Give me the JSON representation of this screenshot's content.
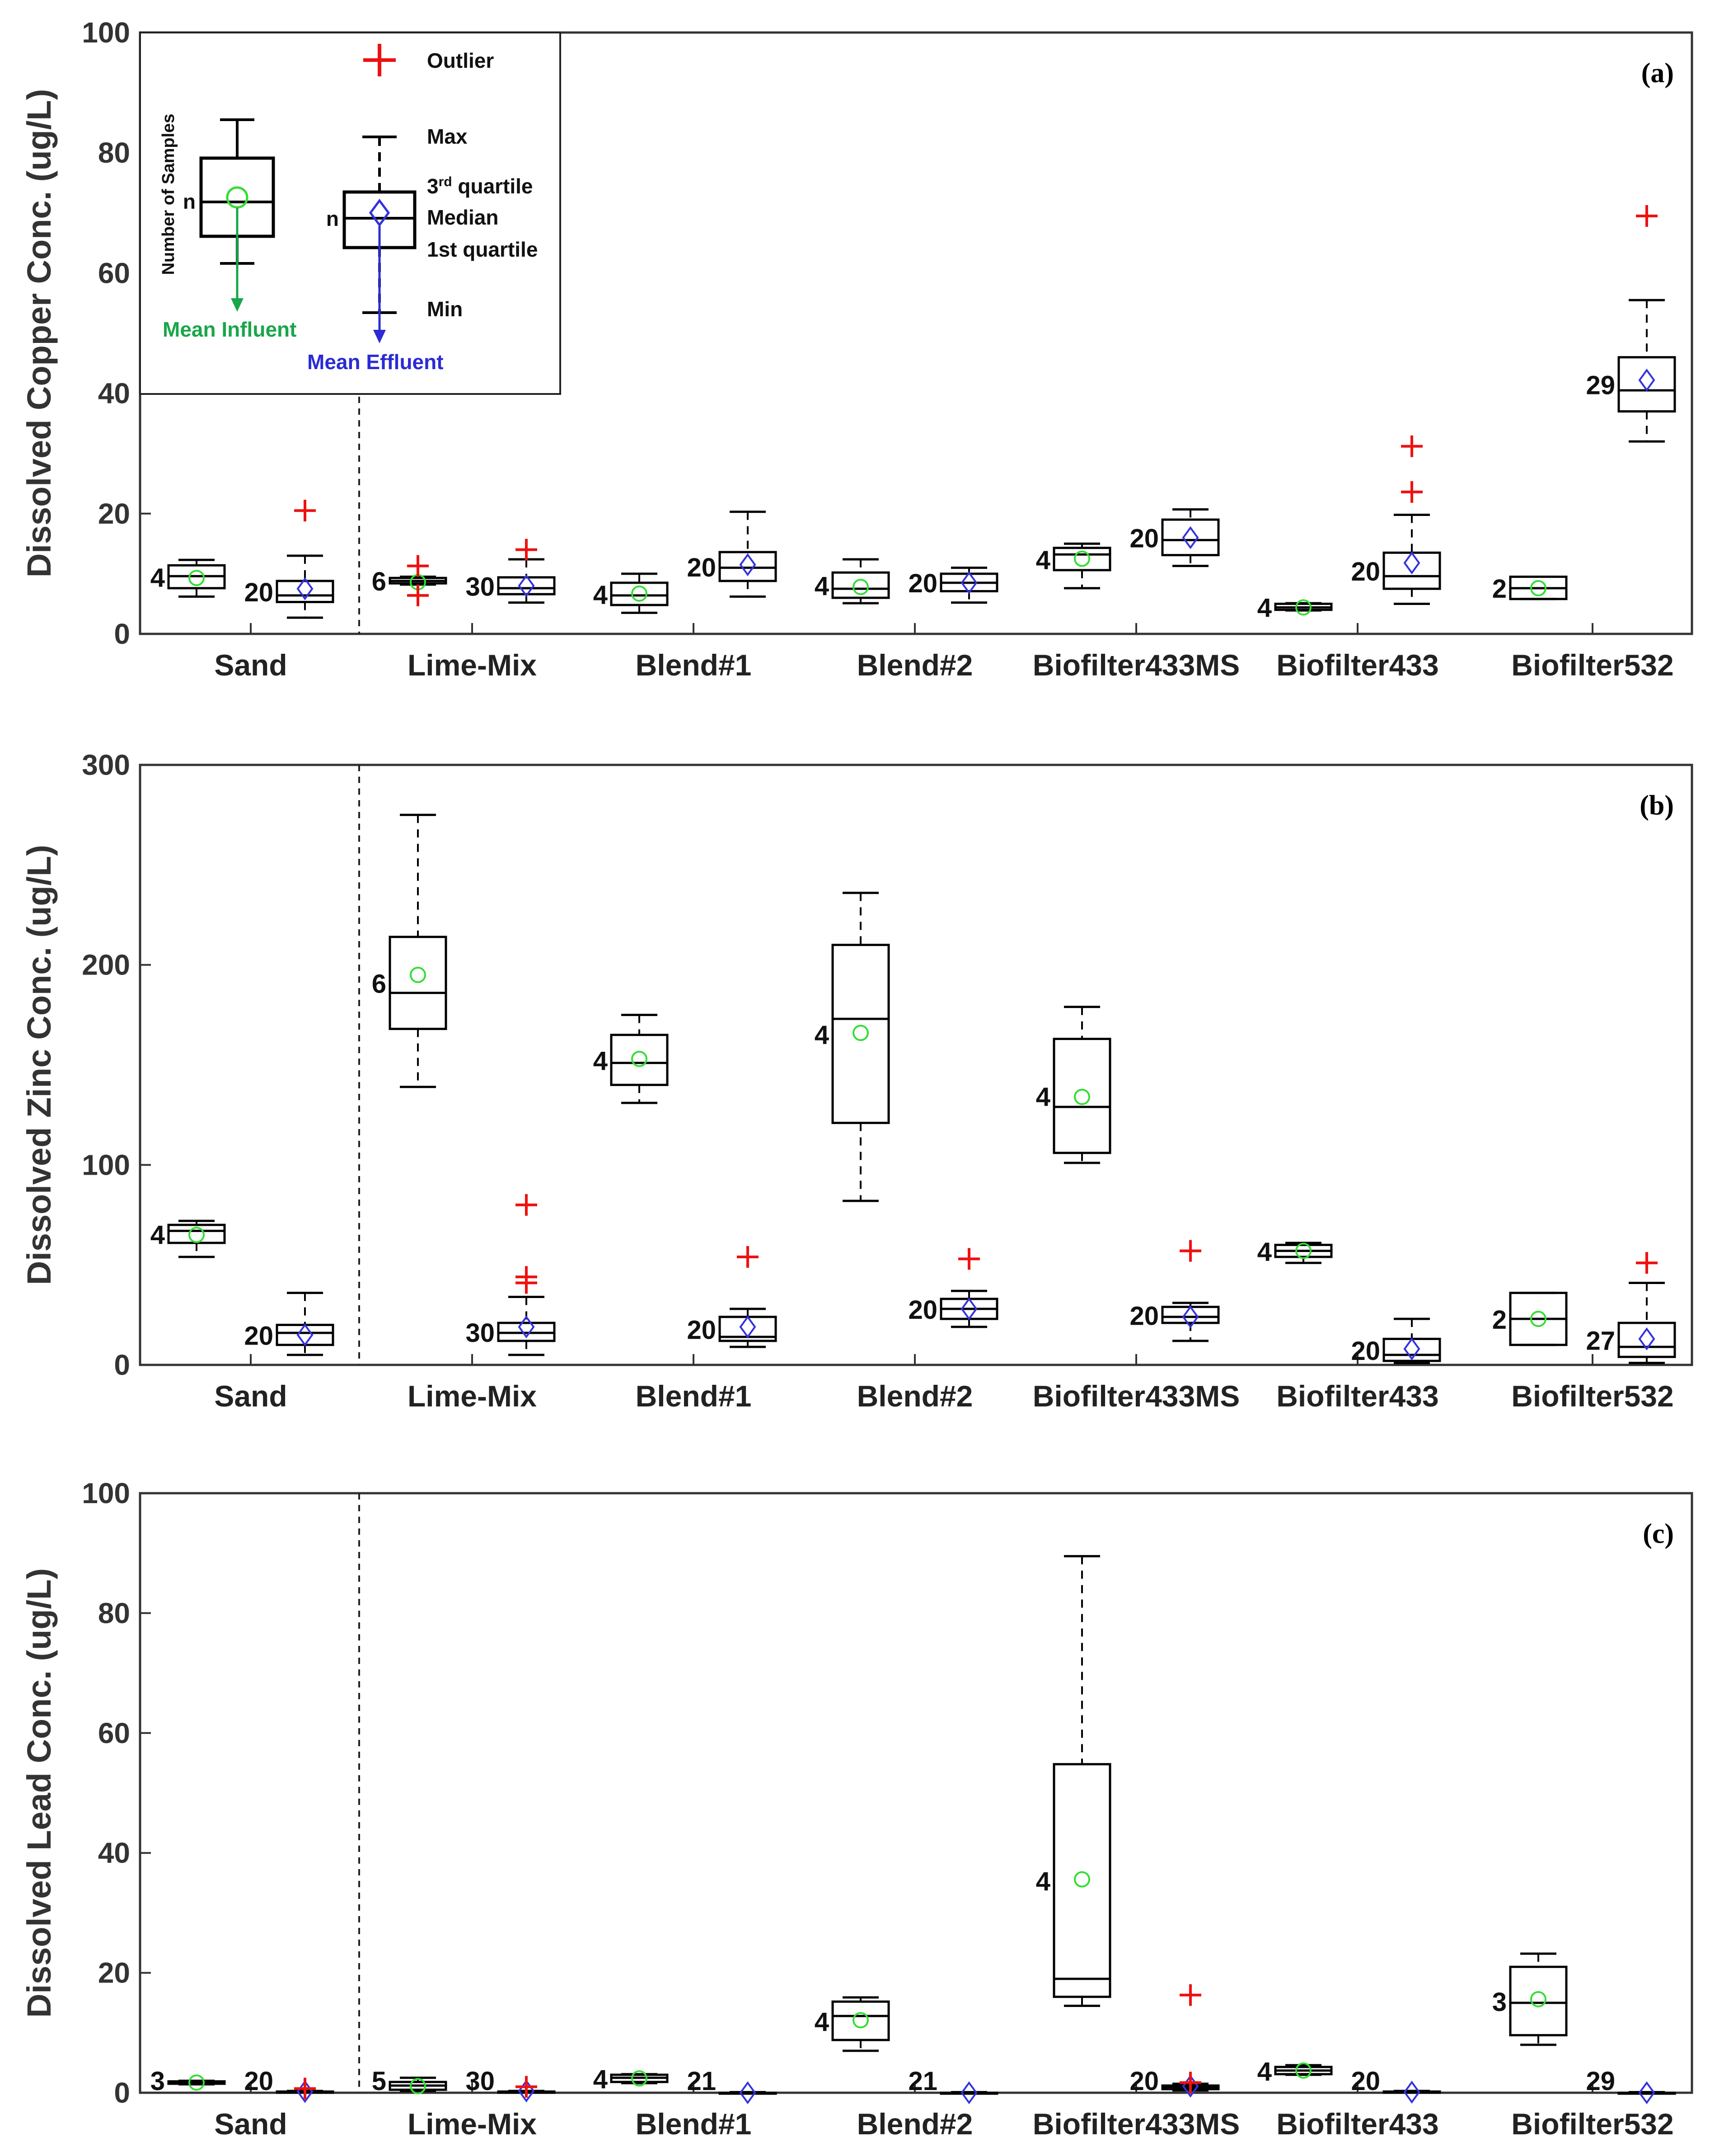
{
  "colors": {
    "influent_mean": "#33dd33",
    "effluent_mean": "#3333dd",
    "outlier": "#ee1111",
    "mean_influent_text": "#1aa64b",
    "mean_effluent_text": "#2b2bd6",
    "axis": "#333333"
  },
  "categories": [
    "Sand",
    "Lime-Mix",
    "Blend#1",
    "Blend#2",
    "Biofilter433MS",
    "Biofilter433",
    "Biofilter532"
  ],
  "legend": {
    "outlier": "Outlier",
    "max": "Max",
    "third_quartile": "3",
    "third_quartile_sup": "rd",
    "third_quartile_rest": " quartile",
    "median": "Median",
    "first_quartile": "1st quartile",
    "min": "Min",
    "n": "n",
    "number_of_samples": "Number of Samples",
    "mean_influent": "Mean Influent",
    "mean_effluent": "Mean Effluent"
  },
  "chart_data": [
    {
      "type": "box",
      "panel_label": "(a)",
      "ylabel": "Dissolved Copper Conc. (ug/L)",
      "ylim": [
        0,
        100
      ],
      "yticks": [
        0,
        20,
        40,
        60,
        80,
        100
      ],
      "boxes": [
        {
          "category": "Sand",
          "stream": "influent",
          "n": "4",
          "min": 6.2,
          "q1": 7.6,
          "median": 9.6,
          "q3": 11.4,
          "max": 12.3,
          "mean": 9.3,
          "outliers": []
        },
        {
          "category": "Sand",
          "stream": "effluent",
          "n": "20",
          "min": 2.7,
          "q1": 5.3,
          "median": 6.4,
          "q3": 8.8,
          "max": 13.0,
          "mean": 7.5,
          "outliers": [
            20.5
          ]
        },
        {
          "category": "Lime-Mix",
          "stream": "influent",
          "n": "6",
          "min": 8.2,
          "q1": 8.4,
          "median": 8.8,
          "q3": 9.3,
          "max": 9.5,
          "mean": 8.6,
          "outliers": [
            6.4,
            11.3
          ]
        },
        {
          "category": "Lime-Mix",
          "stream": "effluent",
          "n": "30",
          "min": 5.2,
          "q1": 6.6,
          "median": 7.6,
          "q3": 9.4,
          "max": 12.4,
          "mean": 8.0,
          "outliers": [
            14.0
          ]
        },
        {
          "category": "Blend#1",
          "stream": "influent",
          "n": "4",
          "min": 3.5,
          "q1": 4.8,
          "median": 6.4,
          "q3": 8.5,
          "max": 10.0,
          "mean": 6.7,
          "outliers": []
        },
        {
          "category": "Blend#1",
          "stream": "effluent",
          "n": "20",
          "min": 6.2,
          "q1": 8.8,
          "median": 11.0,
          "q3": 13.6,
          "max": 20.3,
          "mean": 11.5,
          "outliers": []
        },
        {
          "category": "Blend#2",
          "stream": "influent",
          "n": "4",
          "min": 5.1,
          "q1": 6.0,
          "median": 7.5,
          "q3": 10.2,
          "max": 12.4,
          "mean": 7.8,
          "outliers": []
        },
        {
          "category": "Blend#2",
          "stream": "effluent",
          "n": "20",
          "min": 5.2,
          "q1": 7.1,
          "median": 8.5,
          "q3": 10.0,
          "max": 11.0,
          "mean": 8.5,
          "outliers": []
        },
        {
          "category": "Biofilter433MS",
          "stream": "influent",
          "n": "4",
          "min": 7.6,
          "q1": 10.6,
          "median": 13.2,
          "q3": 14.3,
          "max": 15.0,
          "mean": 12.5,
          "outliers": []
        },
        {
          "category": "Biofilter433MS",
          "stream": "effluent",
          "n": "20",
          "min": 11.3,
          "q1": 13.1,
          "median": 15.6,
          "q3": 19.0,
          "max": 20.7,
          "mean": 16.0,
          "outliers": []
        },
        {
          "category": "Biofilter433",
          "stream": "influent",
          "n": "4",
          "min": 3.9,
          "q1": 4.0,
          "median": 4.4,
          "q3": 5.0,
          "max": 5.1,
          "mean": 4.4,
          "outliers": []
        },
        {
          "category": "Biofilter433",
          "stream": "effluent",
          "n": "20",
          "min": 5.0,
          "q1": 7.5,
          "median": 9.6,
          "q3": 13.5,
          "max": 19.8,
          "mean": 11.8,
          "outliers": [
            23.6,
            31.2
          ]
        },
        {
          "category": "Biofilter532",
          "stream": "influent",
          "n": "2",
          "min": 5.8,
          "q1": 5.8,
          "median": 7.6,
          "q3": 9.5,
          "max": 9.5,
          "mean": 7.6,
          "outliers": []
        },
        {
          "category": "Biofilter532",
          "stream": "effluent",
          "n": "29",
          "min": 32.0,
          "q1": 37.0,
          "median": 40.5,
          "q3": 46.0,
          "max": 55.5,
          "mean": 42.2,
          "outliers": [
            69.5
          ]
        }
      ]
    },
    {
      "type": "box",
      "panel_label": "(b)",
      "ylabel": "Dissolved Zinc Conc. (ug/L)",
      "ylim": [
        0,
        300
      ],
      "yticks": [
        0,
        100,
        200,
        300
      ],
      "boxes": [
        {
          "category": "Sand",
          "stream": "influent",
          "n": "4",
          "min": 54,
          "q1": 61,
          "median": 67,
          "q3": 70,
          "max": 72,
          "mean": 65,
          "outliers": []
        },
        {
          "category": "Sand",
          "stream": "effluent",
          "n": "20",
          "min": 5,
          "q1": 10,
          "median": 16,
          "q3": 20,
          "max": 36,
          "mean": 15,
          "outliers": []
        },
        {
          "category": "Lime-Mix",
          "stream": "influent",
          "n": "6",
          "min": 139,
          "q1": 168,
          "median": 186,
          "q3": 214,
          "max": 275,
          "mean": 195,
          "outliers": []
        },
        {
          "category": "Lime-Mix",
          "stream": "effluent",
          "n": "30",
          "min": 5,
          "q1": 12,
          "median": 16,
          "q3": 21,
          "max": 34,
          "mean": 19,
          "outliers": [
            41,
            44,
            80
          ]
        },
        {
          "category": "Blend#1",
          "stream": "influent",
          "n": "4",
          "min": 131,
          "q1": 140,
          "median": 151,
          "q3": 165,
          "max": 175,
          "mean": 153,
          "outliers": []
        },
        {
          "category": "Blend#1",
          "stream": "effluent",
          "n": "20",
          "min": 9,
          "q1": 12,
          "median": 14,
          "q3": 24,
          "max": 28,
          "mean": 19,
          "outliers": [
            54
          ]
        },
        {
          "category": "Blend#2",
          "stream": "influent",
          "n": "4",
          "min": 82,
          "q1": 121,
          "median": 173,
          "q3": 210,
          "max": 236,
          "mean": 166,
          "outliers": []
        },
        {
          "category": "Blend#2",
          "stream": "effluent",
          "n": "20",
          "min": 19,
          "q1": 23,
          "median": 28,
          "q3": 33,
          "max": 37,
          "mean": 28,
          "outliers": [
            53
          ]
        },
        {
          "category": "Biofilter433MS",
          "stream": "influent",
          "n": "4",
          "min": 101,
          "q1": 106,
          "median": 129,
          "q3": 163,
          "max": 179,
          "mean": 134,
          "outliers": []
        },
        {
          "category": "Biofilter433MS",
          "stream": "effluent",
          "n": "20",
          "min": 12,
          "q1": 21,
          "median": 24,
          "q3": 29,
          "max": 31,
          "mean": 24,
          "outliers": [
            57
          ]
        },
        {
          "category": "Biofilter433",
          "stream": "influent",
          "n": "4",
          "min": 51,
          "q1": 54,
          "median": 57,
          "q3": 60,
          "max": 61,
          "mean": 57,
          "outliers": []
        },
        {
          "category": "Biofilter433",
          "stream": "effluent",
          "n": "20",
          "min": 1,
          "q1": 2,
          "median": 5,
          "q3": 13,
          "max": 23,
          "mean": 8,
          "outliers": []
        },
        {
          "category": "Biofilter532",
          "stream": "influent",
          "n": "2",
          "min": 10,
          "q1": 10,
          "median": 23,
          "q3": 36,
          "max": 36,
          "mean": 23,
          "outliers": []
        },
        {
          "category": "Biofilter532",
          "stream": "effluent",
          "n": "27",
          "min": 1,
          "q1": 4,
          "median": 9,
          "q3": 21,
          "max": 41,
          "mean": 13,
          "outliers": [
            51
          ]
        }
      ]
    },
    {
      "type": "box",
      "panel_label": "(c)",
      "ylabel": "Dissolved Lead Conc. (ug/L)",
      "ylim": [
        0,
        100
      ],
      "yticks": [
        0,
        20,
        40,
        60,
        80,
        100
      ],
      "boxes": [
        {
          "category": "Sand",
          "stream": "influent",
          "n": "3",
          "min": 1.4,
          "q1": 1.5,
          "median": 1.7,
          "q3": 1.9,
          "max": 2.0,
          "mean": 1.7,
          "outliers": []
        },
        {
          "category": "Sand",
          "stream": "effluent",
          "n": "20",
          "min": 0.0,
          "q1": 0.0,
          "median": 0.1,
          "q3": 0.2,
          "max": 0.3,
          "mean": 0.2,
          "outliers": [
            0.7
          ]
        },
        {
          "category": "Lime-Mix",
          "stream": "influent",
          "n": "5",
          "min": 0.3,
          "q1": 0.5,
          "median": 1.2,
          "q3": 1.8,
          "max": 2.5,
          "mean": 1.1,
          "outliers": []
        },
        {
          "category": "Lime-Mix",
          "stream": "effluent",
          "n": "30",
          "min": 0.0,
          "q1": 0.0,
          "median": 0.1,
          "q3": 0.2,
          "max": 0.3,
          "mean": 0.3,
          "outliers": [
            1.0
          ]
        },
        {
          "category": "Blend#1",
          "stream": "influent",
          "n": "4",
          "min": 1.6,
          "q1": 1.8,
          "median": 2.5,
          "q3": 3.0,
          "max": 3.1,
          "mean": 2.4,
          "outliers": []
        },
        {
          "category": "Blend#1",
          "stream": "effluent",
          "n": "21",
          "min": 0.0,
          "q1": 0.0,
          "median": 0.0,
          "q3": 0.0,
          "max": 0.1,
          "mean": 0.0,
          "outliers": []
        },
        {
          "category": "Blend#2",
          "stream": "influent",
          "n": "4",
          "min": 7.0,
          "q1": 8.8,
          "median": 12.8,
          "q3": 15.2,
          "max": 15.9,
          "mean": 12.1,
          "outliers": []
        },
        {
          "category": "Blend#2",
          "stream": "effluent",
          "n": "21",
          "min": 0.0,
          "q1": 0.0,
          "median": 0.0,
          "q3": 0.0,
          "max": 0.1,
          "mean": 0.0,
          "outliers": []
        },
        {
          "category": "Biofilter433MS",
          "stream": "influent",
          "n": "4",
          "min": 14.5,
          "q1": 16.0,
          "median": 19.0,
          "q3": 54.8,
          "max": 89.5,
          "mean": 35.6,
          "outliers": []
        },
        {
          "category": "Biofilter433MS",
          "stream": "effluent",
          "n": "20",
          "min": 0.4,
          "q1": 0.6,
          "median": 0.9,
          "q3": 1.2,
          "max": 1.5,
          "mean": 1.1,
          "outliers": [
            1.7,
            16.3
          ]
        },
        {
          "category": "Biofilter433",
          "stream": "influent",
          "n": "4",
          "min": 3.0,
          "q1": 3.1,
          "median": 3.7,
          "q3": 4.3,
          "max": 4.6,
          "mean": 3.7,
          "outliers": []
        },
        {
          "category": "Biofilter433",
          "stream": "effluent",
          "n": "20",
          "min": 0.0,
          "q1": 0.0,
          "median": 0.1,
          "q3": 0.2,
          "max": 0.3,
          "mean": 0.1,
          "outliers": []
        },
        {
          "category": "Biofilter532",
          "stream": "influent",
          "n": "3",
          "min": 8.0,
          "q1": 9.6,
          "median": 15.0,
          "q3": 21.0,
          "max": 23.2,
          "mean": 15.6,
          "outliers": []
        },
        {
          "category": "Biofilter532",
          "stream": "effluent",
          "n": "29",
          "min": 0.0,
          "q1": 0.0,
          "median": 0.0,
          "q3": 0.0,
          "max": 0.1,
          "mean": 0.0,
          "outliers": []
        }
      ]
    }
  ]
}
